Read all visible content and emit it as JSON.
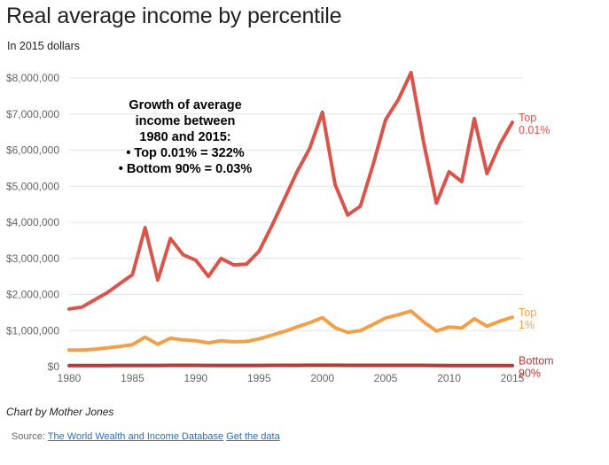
{
  "title": "Real average income by percentile",
  "subtitle": "In 2015 dollars",
  "annotation": {
    "lines": [
      "Growth of average",
      "income between",
      "1980 and 2015:",
      "• Top 0.01% = 322%",
      "• Bottom 90% = 0.03%"
    ]
  },
  "credit": "Chart by Mother Jones",
  "source": {
    "prefix": "Source:",
    "link1": "The World Wealth and Income Database",
    "link2": "Get the data"
  },
  "colors": {
    "top001": "#d9544a",
    "top1": "#f0a04a",
    "bottom90": "#b83a36",
    "grid": "#e4e4e4",
    "axis_text": "#666666"
  },
  "chart_data": {
    "type": "line",
    "title": "Real average income by percentile",
    "ylabel": "In 2015 dollars",
    "xlim": [
      1980,
      2015
    ],
    "ylim": [
      0,
      8000000
    ],
    "x_ticks": [
      1980,
      1985,
      1990,
      1995,
      2000,
      2005,
      2010,
      2015
    ],
    "x_tick_labels": [
      "1980",
      "1985",
      "1990",
      "1995",
      "2000",
      "2005",
      "2010",
      "2015"
    ],
    "y_ticks": [
      0,
      1000000,
      2000000,
      3000000,
      4000000,
      5000000,
      6000000,
      7000000,
      8000000
    ],
    "y_tick_labels": [
      "$0",
      "$1,000,000",
      "$2,000,000",
      "$3,000,000",
      "$4,000,000",
      "$5,000,000",
      "$6,000,000",
      "$7,000,000",
      "$8,000,000"
    ],
    "grid": true,
    "x": [
      1980,
      1981,
      1982,
      1983,
      1984,
      1985,
      1986,
      1987,
      1988,
      1989,
      1990,
      1991,
      1992,
      1993,
      1994,
      1995,
      1996,
      1997,
      1998,
      1999,
      2000,
      2001,
      2002,
      2003,
      2004,
      2005,
      2006,
      2007,
      2008,
      2009,
      2010,
      2011,
      2012,
      2013,
      2014,
      2015
    ],
    "series": [
      {
        "name": "Top 0.01%",
        "label_lines": [
          "Top",
          "0.01%"
        ],
        "color": "#d9544a",
        "values": [
          1600000,
          1650000,
          1850000,
          2050000,
          2300000,
          2550000,
          3850000,
          2400000,
          3550000,
          3100000,
          2950000,
          2500000,
          3000000,
          2820000,
          2840000,
          3200000,
          3900000,
          4650000,
          5400000,
          6050000,
          7050000,
          5050000,
          4200000,
          4450000,
          5600000,
          6850000,
          7400000,
          8150000,
          6200000,
          4530000,
          5400000,
          5130000,
          6870000,
          5350000,
          6150000,
          6770000
        ]
      },
      {
        "name": "Top 1%",
        "label_lines": [
          "Top",
          "1%"
        ],
        "color": "#f0a04a",
        "values": [
          460000,
          460000,
          480000,
          520000,
          560000,
          610000,
          820000,
          620000,
          790000,
          740000,
          720000,
          660000,
          720000,
          690000,
          700000,
          770000,
          870000,
          980000,
          1100000,
          1220000,
          1360000,
          1080000,
          950000,
          1000000,
          1170000,
          1350000,
          1440000,
          1540000,
          1240000,
          990000,
          1100000,
          1070000,
          1330000,
          1120000,
          1260000,
          1370000
        ]
      },
      {
        "name": "Bottom 90%",
        "label_lines": [
          "Bottom",
          "90%"
        ],
        "color": "#b83a36",
        "values": [
          33000,
          33000,
          33000,
          33000,
          34000,
          35000,
          35000,
          35000,
          36000,
          36000,
          36000,
          35000,
          35000,
          35000,
          35000,
          35000,
          36000,
          37000,
          38000,
          39000,
          40000,
          39000,
          38000,
          37000,
          37000,
          37000,
          37000,
          37000,
          36000,
          34000,
          33000,
          33000,
          33000,
          33000,
          33000,
          33000
        ]
      }
    ]
  }
}
